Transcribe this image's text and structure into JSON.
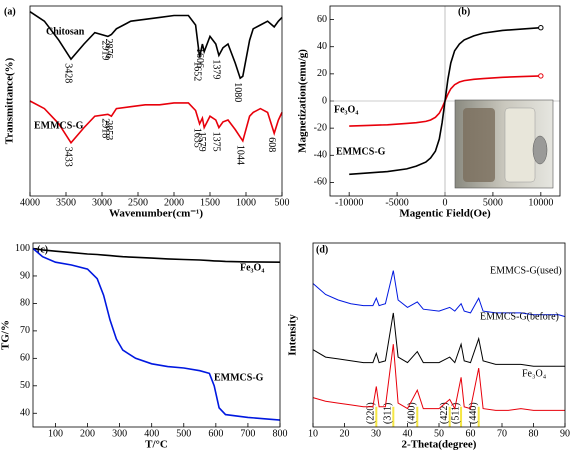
{
  "chart_data": [
    {
      "type": "line",
      "panel_label": "(a)",
      "xlabel": "Wavenumber(cm⁻¹)",
      "ylabel": "Transmittance(%)",
      "xlim": [
        4000,
        500
      ],
      "ylim": [
        0,
        100
      ],
      "xticks": [
        4000,
        3500,
        3000,
        2500,
        2000,
        1500,
        1000,
        500
      ],
      "x": [
        4000,
        3800,
        3600,
        3430,
        3250,
        3100,
        2918,
        2870,
        2800,
        2600,
        2400,
        2200,
        2000,
        1800,
        1700,
        1645,
        1606,
        1580,
        1500,
        1420,
        1377,
        1320,
        1250,
        1150,
        1080,
        1044,
        950,
        900,
        800,
        700,
        608,
        550,
        500
      ],
      "series": [
        {
          "name": "Chitosan",
          "color": "#000000",
          "values": [
            97,
            92,
            82,
            72,
            80,
            86,
            84,
            85,
            88,
            92,
            93,
            94,
            95,
            95,
            90,
            73,
            80,
            76,
            84,
            80,
            74,
            78,
            80,
            70,
            62,
            63,
            82,
            88,
            90,
            92,
            89,
            92,
            94
          ],
          "annotations": [
            {
              "label": "3428",
              "x": 3430
            },
            {
              "label": "2919",
              "x": 2918
            },
            {
              "label": "2876",
              "x": 2870
            },
            {
              "label": "1652",
              "x": 1645
            },
            {
              "label": "1606",
              "x": 1606
            },
            {
              "label": "1379",
              "x": 1377
            },
            {
              "label": "1080",
              "x": 1080
            }
          ]
        },
        {
          "name": "EMMCS-G",
          "color": "#e8000b",
          "values": [
            50,
            46,
            38,
            28,
            36,
            42,
            43,
            42,
            46,
            47,
            48,
            48,
            49,
            49,
            45,
            38,
            41,
            36,
            42,
            40,
            36,
            39,
            40,
            35,
            31,
            29,
            42,
            44,
            46,
            44,
            33,
            40,
            44
          ],
          "annotations": [
            {
              "label": "3433",
              "x": 3430
            },
            {
              "label": "2918",
              "x": 2918
            },
            {
              "label": "2853",
              "x": 2870
            },
            {
              "label": "1635",
              "x": 1645
            },
            {
              "label": "1579",
              "x": 1580
            },
            {
              "label": "1375",
              "x": 1377
            },
            {
              "label": "1044",
              "x": 1044
            },
            {
              "label": "608",
              "x": 608
            }
          ]
        }
      ]
    },
    {
      "type": "line",
      "panel_label": "(b)",
      "xlabel": "Magentic Field(Oe)",
      "ylabel": "Magnetization(emu/g)",
      "xlim": [
        -12000,
        12000
      ],
      "ylim": [
        -70,
        70
      ],
      "xticks": [
        -10000,
        -5000,
        0,
        5000,
        10000
      ],
      "yticks": [
        -60,
        -40,
        -20,
        0,
        20,
        40,
        60
      ],
      "x": [
        -10000,
        -8000,
        -6000,
        -4000,
        -3000,
        -2000,
        -1500,
        -1000,
        -600,
        -300,
        0,
        300,
        600,
        1000,
        1500,
        2000,
        3000,
        4000,
        6000,
        8000,
        10000
      ],
      "series": [
        {
          "name": "Fe₃O₄",
          "color": "#e8000b",
          "values": [
            -18.5,
            -18,
            -17.5,
            -16.5,
            -16,
            -15,
            -14,
            -12,
            -9,
            -5,
            0,
            5,
            9,
            12,
            14,
            15,
            16,
            16.5,
            17.5,
            18,
            18.5
          ]
        },
        {
          "name": "EMMCS-G",
          "color": "#000000",
          "values": [
            -54,
            -53,
            -52,
            -50,
            -48,
            -45,
            -42,
            -37,
            -28,
            -16,
            0,
            16,
            28,
            37,
            42,
            45,
            48,
            50,
            52,
            53,
            54
          ]
        }
      ]
    },
    {
      "type": "line",
      "panel_label": "(c)",
      "xlabel": "T/°C",
      "ylabel": "TG/%",
      "xlim": [
        30,
        800
      ],
      "ylim": [
        35,
        102
      ],
      "xticks": [
        100,
        200,
        300,
        400,
        500,
        600,
        700,
        800
      ],
      "yticks": [
        40,
        50,
        60,
        70,
        80,
        90,
        100
      ],
      "x": [
        30,
        60,
        100,
        150,
        200,
        230,
        250,
        270,
        290,
        310,
        350,
        400,
        450,
        500,
        550,
        580,
        595,
        610,
        630,
        700,
        800
      ],
      "series": [
        {
          "name": "Fe₃O₄",
          "color": "#000000",
          "values": [
            100,
            99.5,
            99,
            98.5,
            98,
            97.8,
            97.6,
            97.4,
            97.2,
            97,
            96.8,
            96.5,
            96.2,
            96,
            95.8,
            95.6,
            95.5,
            95.4,
            95.3,
            95.1,
            95
          ]
        },
        {
          "name": "EMMCS-G",
          "color": "#0018e0",
          "values": [
            100,
            97,
            95,
            94,
            92.5,
            89,
            83,
            74,
            67,
            63,
            60,
            58,
            57,
            56.5,
            55.5,
            54.5,
            50,
            42,
            39.5,
            38.5,
            37.5
          ]
        }
      ]
    },
    {
      "type": "line",
      "panel_label": "(d)",
      "xlabel": "2-Theta(degree)",
      "ylabel": "Intensity",
      "xlim": [
        10,
        90
      ],
      "ylim": [
        0,
        100
      ],
      "xticks": [
        10,
        20,
        30,
        40,
        50,
        60,
        70,
        80,
        90
      ],
      "x": [
        10,
        14,
        18,
        22,
        26,
        29,
        30.1,
        31,
        33,
        35.5,
        37,
        40,
        43.1,
        45,
        50,
        53.4,
        55,
        57,
        58,
        60,
        62.6,
        64,
        68,
        72,
        76,
        80,
        84,
        88,
        90
      ],
      "series": [
        {
          "name": "EMMCS-G(used)",
          "color": "#0018e0",
          "values": [
            78,
            72,
            69,
            67,
            66,
            66,
            70,
            66,
            67,
            85,
            69,
            65,
            68,
            64,
            63,
            65,
            63,
            67,
            63,
            62,
            70,
            63,
            62,
            62,
            62,
            61,
            61,
            61,
            60
          ]
        },
        {
          "name": "EMMCS-G(before)",
          "color": "#000000",
          "values": [
            42,
            38,
            37,
            36,
            35,
            35,
            40,
            35,
            36,
            62,
            38,
            35,
            41,
            35,
            35,
            38,
            35,
            45,
            36,
            35,
            48,
            36,
            34,
            34,
            34,
            33,
            33,
            33,
            33
          ]
        },
        {
          "name": "Fe₃O₄",
          "color": "#e8000b",
          "values": [
            16,
            14,
            13,
            12,
            11,
            11,
            22,
            11,
            11,
            45,
            13,
            10,
            20,
            10,
            10,
            15,
            10,
            27,
            11,
            10,
            32,
            10,
            9,
            9,
            10,
            9,
            9,
            9,
            9
          ]
        }
      ],
      "peaks": [
        {
          "label": "(220)",
          "x": 30.1
        },
        {
          "label": "(311)",
          "x": 35.5
        },
        {
          "label": "(400)",
          "x": 43.1
        },
        {
          "label": "(422)",
          "x": 53.4
        },
        {
          "label": "(511)",
          "x": 57
        },
        {
          "label": "(440)",
          "x": 62.6
        }
      ]
    }
  ]
}
